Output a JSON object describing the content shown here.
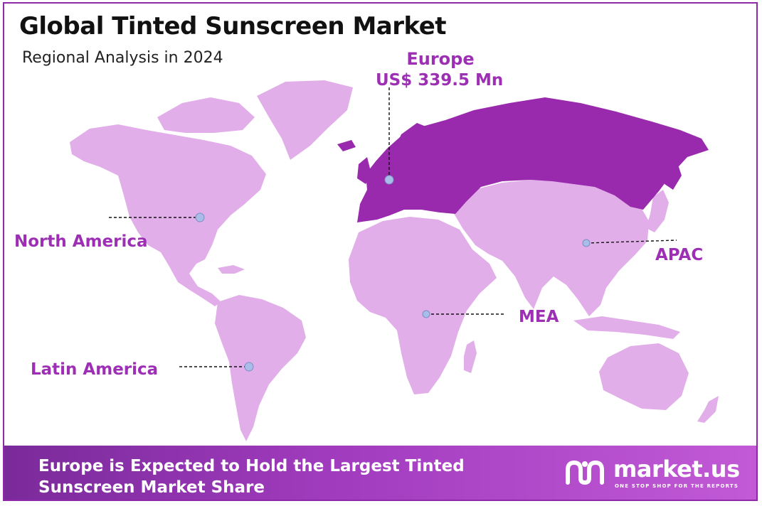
{
  "title": "Global Tinted Sunscreen Market",
  "subtitle": "Regional Analysis in 2024",
  "regions": {
    "europe": {
      "name": "Europe",
      "value": "US$ 339.5 Mn",
      "highlighted": true
    },
    "north_america": {
      "name": "North America"
    },
    "latin_america": {
      "name": "Latin America"
    },
    "mea": {
      "name": "MEA"
    },
    "apac": {
      "name": "APAC"
    }
  },
  "colors": {
    "highlight_region": "#9a2aad",
    "other_regions": "#e2aee9",
    "label_text": "#9d2fb5",
    "marker": "#a9bde8",
    "frame": "#8e2aa8"
  },
  "banner": {
    "text": "Europe is Expected to Hold the Largest Tinted Sunscreen Market Share",
    "logo_name": "market.us",
    "logo_tagline": "ONE STOP SHOP FOR THE REPORTS"
  }
}
